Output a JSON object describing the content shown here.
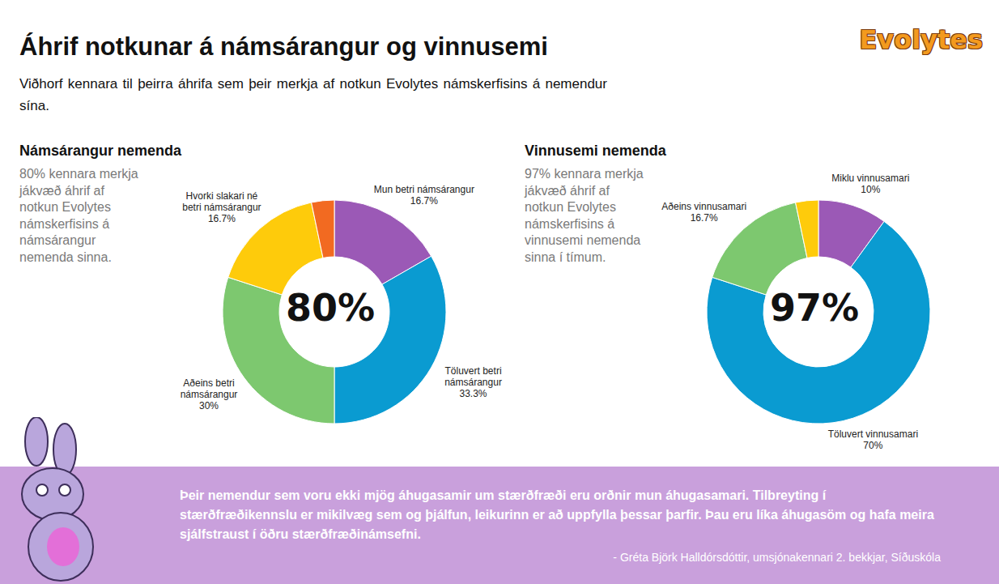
{
  "title": "Áhrif notkunar á námsárangur og vinnusemi",
  "subtitle": "Viðhorf kennara til þeirra áhrifa sem þeir merkja af notkun Evolytes námskerfisins á nemendur sína.",
  "logo": "Evolytes",
  "chart_data": [
    {
      "type": "pie",
      "title": "Námsárangur nemenda",
      "description": "80% kennara merkja jákvæð áhrif af notkun Evolytes námskerfisins á námsárangur nemenda sinna.",
      "center_label": "80%",
      "categories": [
        "Mun betri námsárangur",
        "Töluvert betri námsárangur",
        "Aðeins betri námsárangur",
        "Hvorki slakari né betri námsárangur",
        null
      ],
      "values": [
        16.7,
        33.3,
        30,
        16.7,
        3.3
      ],
      "value_labels": [
        "16.7%",
        "33.3%",
        "30%",
        "16.7%",
        null
      ],
      "colors": [
        "#9b59b6",
        "#0a9bd1",
        "#7dc86f",
        "#fecb0b",
        "#f26a21"
      ],
      "data_labels": true
    },
    {
      "type": "pie",
      "title": "Vinnusemi nemenda",
      "description": "97% kennara merkja jákvæð áhrif af notkun Evolytes námskerfisins á vinnusemi nemenda sinna í tímum.",
      "center_label": "97%",
      "categories": [
        "Miklu vinnusamari",
        "Töluvert vinnusamari",
        "Aðeins vinnusamari",
        null
      ],
      "values": [
        10,
        70,
        16.7,
        3.3
      ],
      "value_labels": [
        "10%",
        "70%",
        "16.7%",
        null
      ],
      "colors": [
        "#9b59b6",
        "#0a9bd1",
        "#7dc86f",
        "#fecb0b"
      ],
      "data_labels": true
    }
  ],
  "quote": {
    "text": "Þeir nemendur sem voru ekki mjög áhugasamir um stærðfræði eru orðnir mun áhugasamari. Tilbreyting í stærðfræðikennslu er mikilvæg sem og þjálfun, leikurinn er að uppfylla þessar þarfir. Þau eru líka áhugasöm og hafa meira sjálfstraust í öðru stærðfræðinámsefni.",
    "attribution": "- Gréta Björk Halldórsdóttir, umsjónakennari 2. bekkjar, Síðuskóla"
  }
}
